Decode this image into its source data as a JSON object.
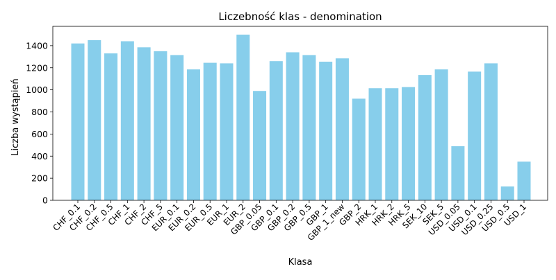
{
  "chart_data": {
    "type": "bar",
    "title": "Liczebność klas - denomination",
    "xlabel": "Klasa",
    "ylabel": "Liczba wystąpień",
    "ylim": [
      0,
      1575
    ],
    "yticks": [
      0,
      200,
      400,
      600,
      800,
      1000,
      1200,
      1400
    ],
    "grid": false,
    "bar_color": "#87ceeb",
    "categories": [
      "CHF_0.1",
      "CHF_0.2",
      "CHF_0.5",
      "CHF_1",
      "CHF_2",
      "CHF_5",
      "EUR_0.1",
      "EUR_0.2",
      "EUR_0.5",
      "EUR_1",
      "EUR_2",
      "GBP_0.05",
      "GBP_0.1",
      "GBP_0.2",
      "GBP_0.5",
      "GBP_1",
      "GBP_1_new",
      "GBP_2",
      "HRK_1",
      "HRK_2",
      "HRK_5",
      "SEK_10",
      "SEK_5",
      "USD_0.05",
      "USD_0.1",
      "USD_0.25",
      "USD_0.5",
      "USD_1"
    ],
    "values": [
      1420,
      1450,
      1330,
      1440,
      1385,
      1350,
      1315,
      1185,
      1245,
      1240,
      1500,
      990,
      1260,
      1340,
      1315,
      1255,
      1285,
      920,
      1015,
      1015,
      1025,
      1135,
      1185,
      490,
      1165,
      1240,
      125,
      350
    ]
  }
}
